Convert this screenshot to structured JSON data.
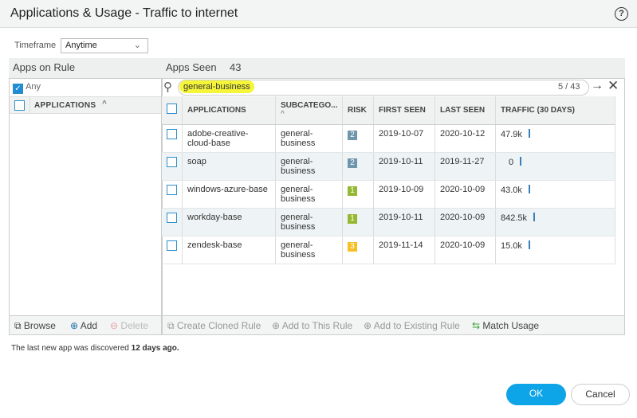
{
  "dialog": {
    "title": "Applications & Usage - Traffic to internet",
    "help_icon": "question-circle-icon"
  },
  "timeframe": {
    "label": "Timeframe",
    "value": "Anytime"
  },
  "apps_on_rule": {
    "title": "Apps on Rule",
    "any_label": "Any",
    "any_checked": true,
    "column": "APPLICATIONS",
    "browse": "Browse",
    "add": "Add",
    "delete": "Delete"
  },
  "apps_seen": {
    "title": "Apps Seen",
    "count": "43",
    "search": "general-business",
    "match_count": "5 / 43",
    "columns": [
      "APPLICATIONS",
      "SUBCATEGO...",
      "RISK",
      "FIRST SEEN",
      "LAST SEEN",
      "TRAFFIC (30 DAYS)"
    ],
    "rows": [
      {
        "app": "adobe-creative-cloud-base",
        "subcat": "general-business",
        "risk": "2",
        "first": "2019-10-07",
        "last": "2020-10-12",
        "traffic": "47.9k"
      },
      {
        "app": "soap",
        "subcat": "general-business",
        "risk": "2",
        "first": "2019-10-11",
        "last": "2019-11-27",
        "traffic": "0"
      },
      {
        "app": "windows-azure-base",
        "subcat": "general-business",
        "risk": "1",
        "first": "2019-10-09",
        "last": "2020-10-09",
        "traffic": "43.0k"
      },
      {
        "app": "workday-base",
        "subcat": "general-business",
        "risk": "1",
        "first": "2019-10-11",
        "last": "2020-10-09",
        "traffic": "842.5k"
      },
      {
        "app": "zendesk-base",
        "subcat": "general-business",
        "risk": "3",
        "first": "2019-11-14",
        "last": "2020-10-09",
        "traffic": "15.0k"
      }
    ],
    "actions": {
      "clone": "Create Cloned Rule",
      "add_this": "Add to This Rule",
      "add_existing": "Add to Existing Rule",
      "match": "Match Usage"
    }
  },
  "risk_colors": {
    "1": "#95b832",
    "2": "#6d95ac",
    "3": "#f7bf26"
  },
  "status": {
    "prefix": "The last new app was discovered ",
    "bold": "12 days ago."
  },
  "buttons": {
    "ok": "OK",
    "cancel": "Cancel"
  },
  "colors": {
    "accent": "#0ea5e8"
  }
}
